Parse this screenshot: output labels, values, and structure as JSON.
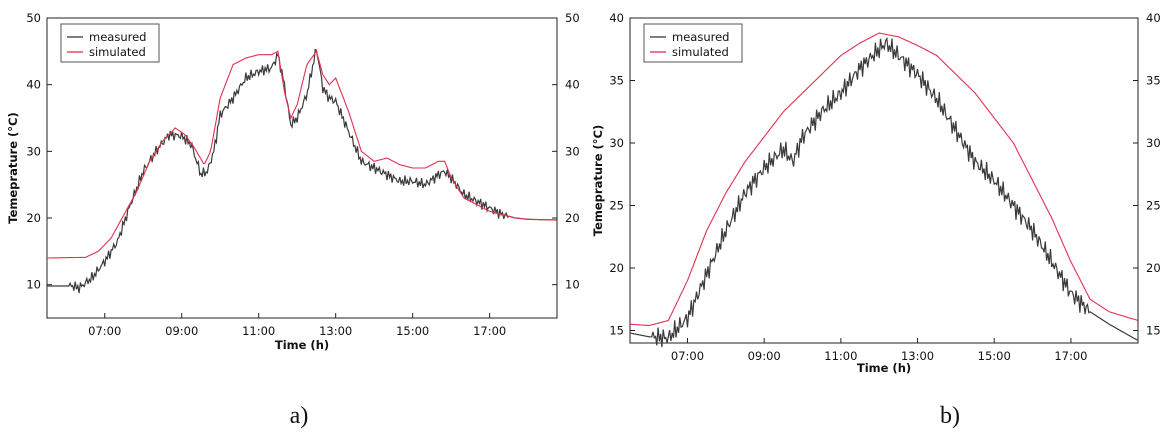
{
  "chart_data": [
    {
      "type": "line",
      "caption": "a)",
      "xlabel": "Time (h)",
      "ylabel": "Temepratur​e (°C)",
      "xlim": [
        "05:30",
        "18:45"
      ],
      "ylim": [
        5,
        50
      ],
      "yticks": [
        10,
        20,
        30,
        40,
        50
      ],
      "right_yticks": [
        10,
        20,
        30,
        40,
        50
      ],
      "xticks": [
        "07:00",
        "09:00",
        "11:00",
        "13:00",
        "15:00",
        "17:00"
      ],
      "grid": false,
      "legend_position": "top-left",
      "series": [
        {
          "name": "measured",
          "color": "#3a3a3a",
          "x": [
            "05:30",
            "06:10",
            "06:20",
            "06:40",
            "07:00",
            "07:20",
            "07:40",
            "08:00",
            "08:20",
            "08:40",
            "09:00",
            "09:15",
            "09:30",
            "09:40",
            "09:50",
            "10:00",
            "10:20",
            "10:40",
            "11:00",
            "11:20",
            "11:30",
            "11:40",
            "11:50",
            "12:00",
            "12:15",
            "12:30",
            "12:40",
            "12:50",
            "13:00",
            "13:20",
            "13:40",
            "14:00",
            "14:20",
            "14:40",
            "15:00",
            "15:20",
            "15:40",
            "15:50",
            "16:00",
            "16:20",
            "16:40",
            "17:00",
            "17:20",
            "17:40",
            "18:00",
            "18:45"
          ],
          "y": [
            9.8,
            9.8,
            9.5,
            11,
            13.5,
            16.5,
            22,
            27,
            30,
            32.5,
            32.3,
            31,
            26.5,
            27,
            30,
            35.5,
            38,
            41,
            42,
            42.5,
            44.5,
            40,
            34,
            35,
            38.5,
            45.5,
            39.5,
            38,
            37.5,
            33,
            28.5,
            27.5,
            26.5,
            25.5,
            25.5,
            25,
            26.5,
            27,
            26,
            23.5,
            22.5,
            21.5,
            20.5,
            20,
            19.8,
            19.7
          ]
        },
        {
          "name": "simulated",
          "color": "#e2314f",
          "x": [
            "05:30",
            "06:30",
            "06:50",
            "07:10",
            "07:30",
            "07:50",
            "08:10",
            "08:30",
            "08:50",
            "09:05",
            "09:20",
            "09:35",
            "09:45",
            "10:00",
            "10:20",
            "10:40",
            "11:00",
            "11:20",
            "11:30",
            "11:40",
            "11:50",
            "12:00",
            "12:15",
            "12:30",
            "12:40",
            "12:50",
            "13:00",
            "13:20",
            "13:40",
            "14:00",
            "14:20",
            "14:40",
            "15:00",
            "15:20",
            "15:40",
            "15:50",
            "16:00",
            "16:20",
            "16:40",
            "17:00",
            "17:20",
            "17:40",
            "18:00",
            "18:45"
          ],
          "y": [
            14,
            14.1,
            15,
            17,
            20.5,
            24,
            28.5,
            31.5,
            33.5,
            32.5,
            30.5,
            28,
            30,
            38,
            43,
            44,
            44.5,
            44.5,
            45,
            39,
            35,
            37,
            43,
            45,
            41.5,
            40,
            41,
            36,
            30,
            28.5,
            29,
            28,
            27.5,
            27.5,
            28.5,
            28.5,
            26,
            23,
            22,
            21,
            20.5,
            20,
            19.8,
            19.7
          ]
        }
      ]
    },
    {
      "type": "line",
      "caption": "b)",
      "xlabel": "Time (h)",
      "ylabel": "Temeprature (°C)",
      "xlim": [
        "05:30",
        "18:45"
      ],
      "ylim": [
        14,
        40
      ],
      "yticks": [
        15,
        20,
        25,
        30,
        35,
        40
      ],
      "right_yticks": [
        15,
        20,
        25,
        30,
        35,
        40
      ],
      "xticks": [
        "07:00",
        "09:00",
        "11:00",
        "13:00",
        "15:00",
        "17:00"
      ],
      "grid": false,
      "legend_position": "top-left",
      "series": [
        {
          "name": "measured",
          "color": "#3a3a3a",
          "x": [
            "05:30",
            "06:00",
            "06:30",
            "07:00",
            "07:30",
            "08:00",
            "08:30",
            "09:00",
            "09:30",
            "09:45",
            "10:00",
            "10:30",
            "11:00",
            "11:30",
            "12:00",
            "12:10",
            "12:30",
            "13:00",
            "13:30",
            "14:00",
            "14:30",
            "15:00",
            "15:30",
            "16:00",
            "16:30",
            "17:00",
            "17:30",
            "18:00",
            "18:45"
          ],
          "y": [
            14.8,
            14.5,
            14.4,
            16,
            19.5,
            23,
            26,
            28,
            29.5,
            28.5,
            30.5,
            32.5,
            34,
            36,
            37.5,
            38,
            37,
            35.5,
            33.5,
            31,
            28.5,
            27,
            25,
            23,
            20.5,
            18,
            16.5,
            15.5,
            14.2
          ]
        },
        {
          "name": "simulated",
          "color": "#e2314f",
          "x": [
            "05:30",
            "06:00",
            "06:30",
            "07:00",
            "07:30",
            "08:00",
            "08:30",
            "09:00",
            "09:30",
            "10:00",
            "10:30",
            "11:00",
            "11:30",
            "12:00",
            "12:30",
            "13:00",
            "13:30",
            "14:00",
            "14:30",
            "15:00",
            "15:30",
            "16:00",
            "16:30",
            "17:00",
            "17:30",
            "18:00",
            "18:45"
          ],
          "y": [
            15.5,
            15.4,
            15.8,
            19,
            23,
            26,
            28.5,
            30.5,
            32.5,
            34,
            35.5,
            37,
            38,
            38.8,
            38.5,
            37.8,
            37,
            35.5,
            34,
            32,
            30,
            27,
            24,
            20.5,
            17.5,
            16.5,
            15.8
          ]
        }
      ]
    }
  ]
}
